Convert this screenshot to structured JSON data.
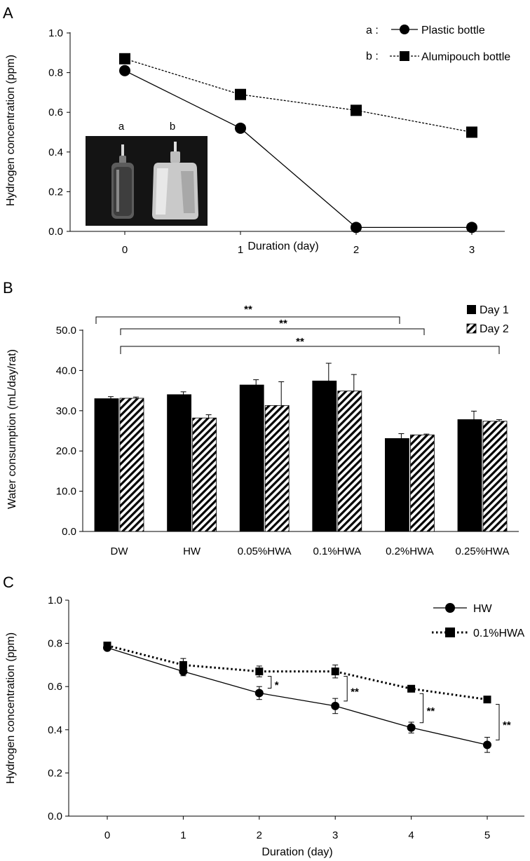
{
  "figure": {
    "panel_labels": [
      "A",
      "B",
      "C"
    ]
  },
  "photo": {
    "label_a": "a",
    "label_b": "b",
    "description": "Photograph of a plastic bottle (a) and an alumipouch bottle (b)"
  },
  "chart_data": [
    {
      "id": "A",
      "type": "line",
      "title": "",
      "xlabel": "Duration (day)",
      "ylabel": "Hydrogen concentration (ppm)",
      "x": [
        0,
        1,
        2,
        3
      ],
      "xticks": [
        "0",
        "1",
        "2",
        "3"
      ],
      "ylim": [
        0,
        1.0
      ],
      "yticks": [
        "0.0",
        "0.2",
        "0.4",
        "0.6",
        "0.8",
        "1.0"
      ],
      "series": [
        {
          "name": "Plastic bottle",
          "legend_prefix": "a :",
          "marker": "circle",
          "line": "solid",
          "values": [
            0.81,
            0.52,
            0.02,
            0.02
          ]
        },
        {
          "name": "Alumipouch bottle",
          "legend_prefix": "b :",
          "marker": "square",
          "line": "dashed",
          "values": [
            0.87,
            0.69,
            0.61,
            0.5
          ]
        }
      ]
    },
    {
      "id": "B",
      "type": "bar",
      "title": "",
      "xlabel": "",
      "ylabel": "Water consumption (mL/day/rat)",
      "categories": [
        "DW",
        "HW",
        "0.05%HWA",
        "0.1%HWA",
        "0.2%HWA",
        "0.25%HWA"
      ],
      "ylim": [
        0,
        50
      ],
      "yticks": [
        "0.0",
        "10.0",
        "20.0",
        "30.0",
        "40.0",
        "50.0"
      ],
      "series": [
        {
          "name": "Day 1",
          "pattern": "solid",
          "values": [
            33.0,
            34.0,
            36.4,
            37.4,
            23.1,
            27.8
          ],
          "errors": [
            0.5,
            0.7,
            1.3,
            4.4,
            1.2,
            2.1
          ]
        },
        {
          "name": "Day 2",
          "pattern": "hatched",
          "values": [
            33.1,
            28.2,
            31.3,
            34.9,
            24.0,
            27.4
          ],
          "errors": [
            0.3,
            0.8,
            5.9,
            4.1,
            0.2,
            0.4
          ]
        }
      ],
      "significance": [
        {
          "from": "DW",
          "to": "0.2%HWA",
          "label": "**"
        },
        {
          "from": "DW",
          "to": "0.2%HWA",
          "label": "**"
        },
        {
          "from": "DW",
          "to": "0.25%HWA",
          "label": "**"
        }
      ]
    },
    {
      "id": "C",
      "type": "line",
      "title": "",
      "xlabel": "Duration (day)",
      "ylabel": "Hydrogen concentration (ppm)",
      "x": [
        0,
        1,
        2,
        3,
        4,
        5
      ],
      "xticks": [
        "0",
        "1",
        "2",
        "3",
        "4",
        "5"
      ],
      "ylim": [
        0,
        1.0
      ],
      "yticks": [
        "0.0",
        "0.2",
        "0.4",
        "0.6",
        "0.8",
        "1.0"
      ],
      "series": [
        {
          "name": "HW",
          "marker": "circle",
          "line": "solid",
          "values": [
            0.78,
            0.67,
            0.57,
            0.51,
            0.41,
            0.33
          ],
          "errors": [
            0.01,
            0.02,
            0.03,
            0.035,
            0.025,
            0.035
          ]
        },
        {
          "name": "0.1%HWA",
          "marker": "square",
          "line": "dotted",
          "values": [
            0.79,
            0.7,
            0.67,
            0.67,
            0.59,
            0.54
          ],
          "errors": [
            0.01,
            0.03,
            0.025,
            0.03,
            0.01,
            0.01
          ]
        }
      ],
      "significance": [
        {
          "x": 2,
          "label": "*"
        },
        {
          "x": 3,
          "label": "**"
        },
        {
          "x": 4,
          "label": "**"
        },
        {
          "x": 5,
          "label": "**"
        }
      ]
    }
  ]
}
